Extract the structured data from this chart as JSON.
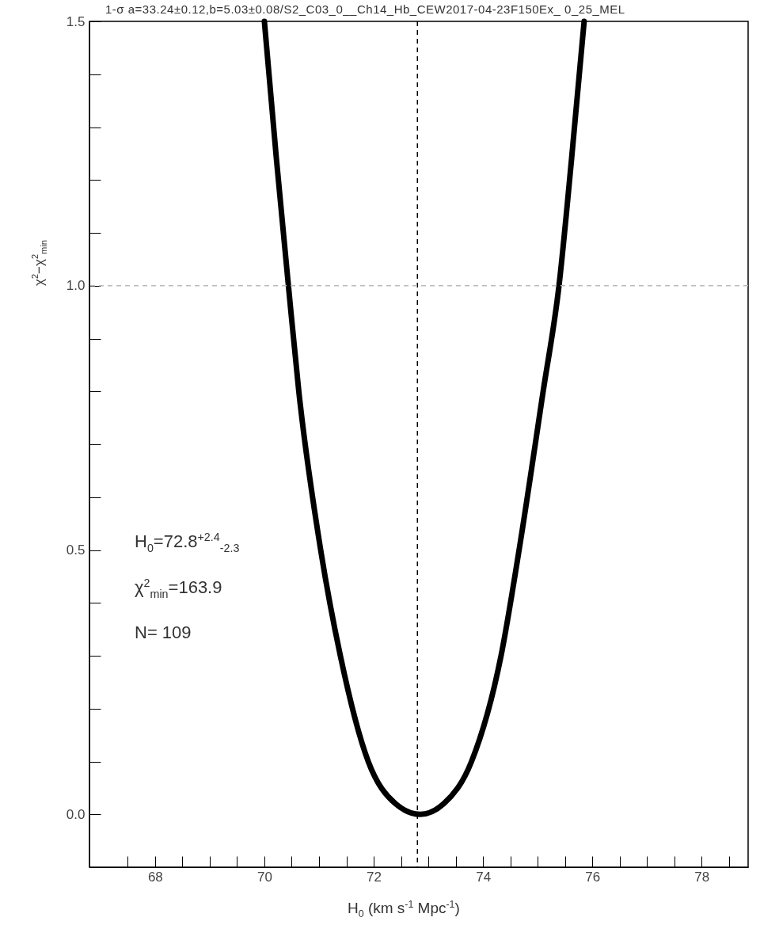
{
  "chart_data": {
    "type": "line",
    "title": "1-σ  a=33.24±0.12,b=5.03±0.08/S2_C03_0__Ch14_Hb_CEW2017-04-23F150Ex_ 0_25_MEL",
    "xlabel": "H$_{0}$ (km s$^{-1}$ Mpc$^{-1}$)",
    "ylabel": "χ$^{2}$−χ$^{2}$$_{min}$",
    "annotations": [
      "H$_{0}$=72.8$^{+2.4}$$_{-2.3}$",
      "χ$^{2}$$_{min}$=163.9",
      "N=  109"
    ],
    "series": [
      {
        "color": "#000000",
        "x": [
          70.0,
          70.22,
          70.44,
          70.63,
          71.03,
          71.39,
          71.9,
          72.4,
          72.85,
          73.28,
          73.79,
          74.33,
          74.66,
          75.1,
          75.39,
          75.62,
          75.85
        ],
        "values": [
          1.5,
          1.24,
          1.0,
          0.8,
          0.5,
          0.3,
          0.1,
          0.02,
          0.0,
          0.02,
          0.1,
          0.3,
          0.5,
          0.8,
          1.0,
          1.24,
          1.5
        ]
      }
    ],
    "xlim": [
      66.8,
      78.85
    ],
    "ylim": [
      -0.1,
      1.5
    ],
    "xticks": [
      {
        "value": 67.5,
        "label": null
      },
      68,
      {
        "value": 68.5,
        "label": null
      },
      {
        "value": 69,
        "label": null
      },
      {
        "value": 69.5,
        "label": null
      },
      70,
      {
        "value": 70.5,
        "label": null
      },
      {
        "value": 71,
        "label": null
      },
      {
        "value": 71.5,
        "label": null
      },
      72,
      {
        "value": 72.5,
        "label": null
      },
      {
        "value": 73,
        "label": null
      },
      {
        "value": 73.5,
        "label": null
      },
      74,
      {
        "value": 74.5,
        "label": null
      },
      {
        "value": 75,
        "label": null
      },
      {
        "value": 75.5,
        "label": null
      },
      76,
      {
        "value": 76.5,
        "label": null
      },
      {
        "value": 77,
        "label": null
      },
      {
        "value": 77.5,
        "label": null
      },
      78,
      {
        "value": 78.5,
        "label": null
      }
    ],
    "yticks": [
      {
        "value": 0,
        "label": "0.0"
      },
      {
        "value": 0.1,
        "label": null
      },
      {
        "value": 0.2,
        "label": null
      },
      {
        "value": 0.3,
        "label": null
      },
      {
        "value": 0.4,
        "label": null
      },
      0.5,
      {
        "value": 0.6,
        "label": null
      },
      {
        "value": 0.7,
        "label": null
      },
      {
        "value": 0.8,
        "label": null
      },
      {
        "value": 0.9,
        "label": null
      },
      {
        "value": 1,
        "label": "1.0"
      },
      {
        "value": 1.1,
        "label": null
      },
      {
        "value": 1.2,
        "label": null
      },
      {
        "value": 1.3,
        "label": null
      },
      {
        "value": 1.4,
        "label": null
      },
      1.5
    ],
    "ref_lines": [
      {
        "axis": "x",
        "value": 72.8,
        "color": "#000000",
        "line_style": "dashed"
      },
      {
        "axis": "y",
        "value": 1.0,
        "color": "#bbbbbb",
        "line_style": "dashed"
      }
    ],
    "grid": false,
    "line_style": "solid"
  }
}
